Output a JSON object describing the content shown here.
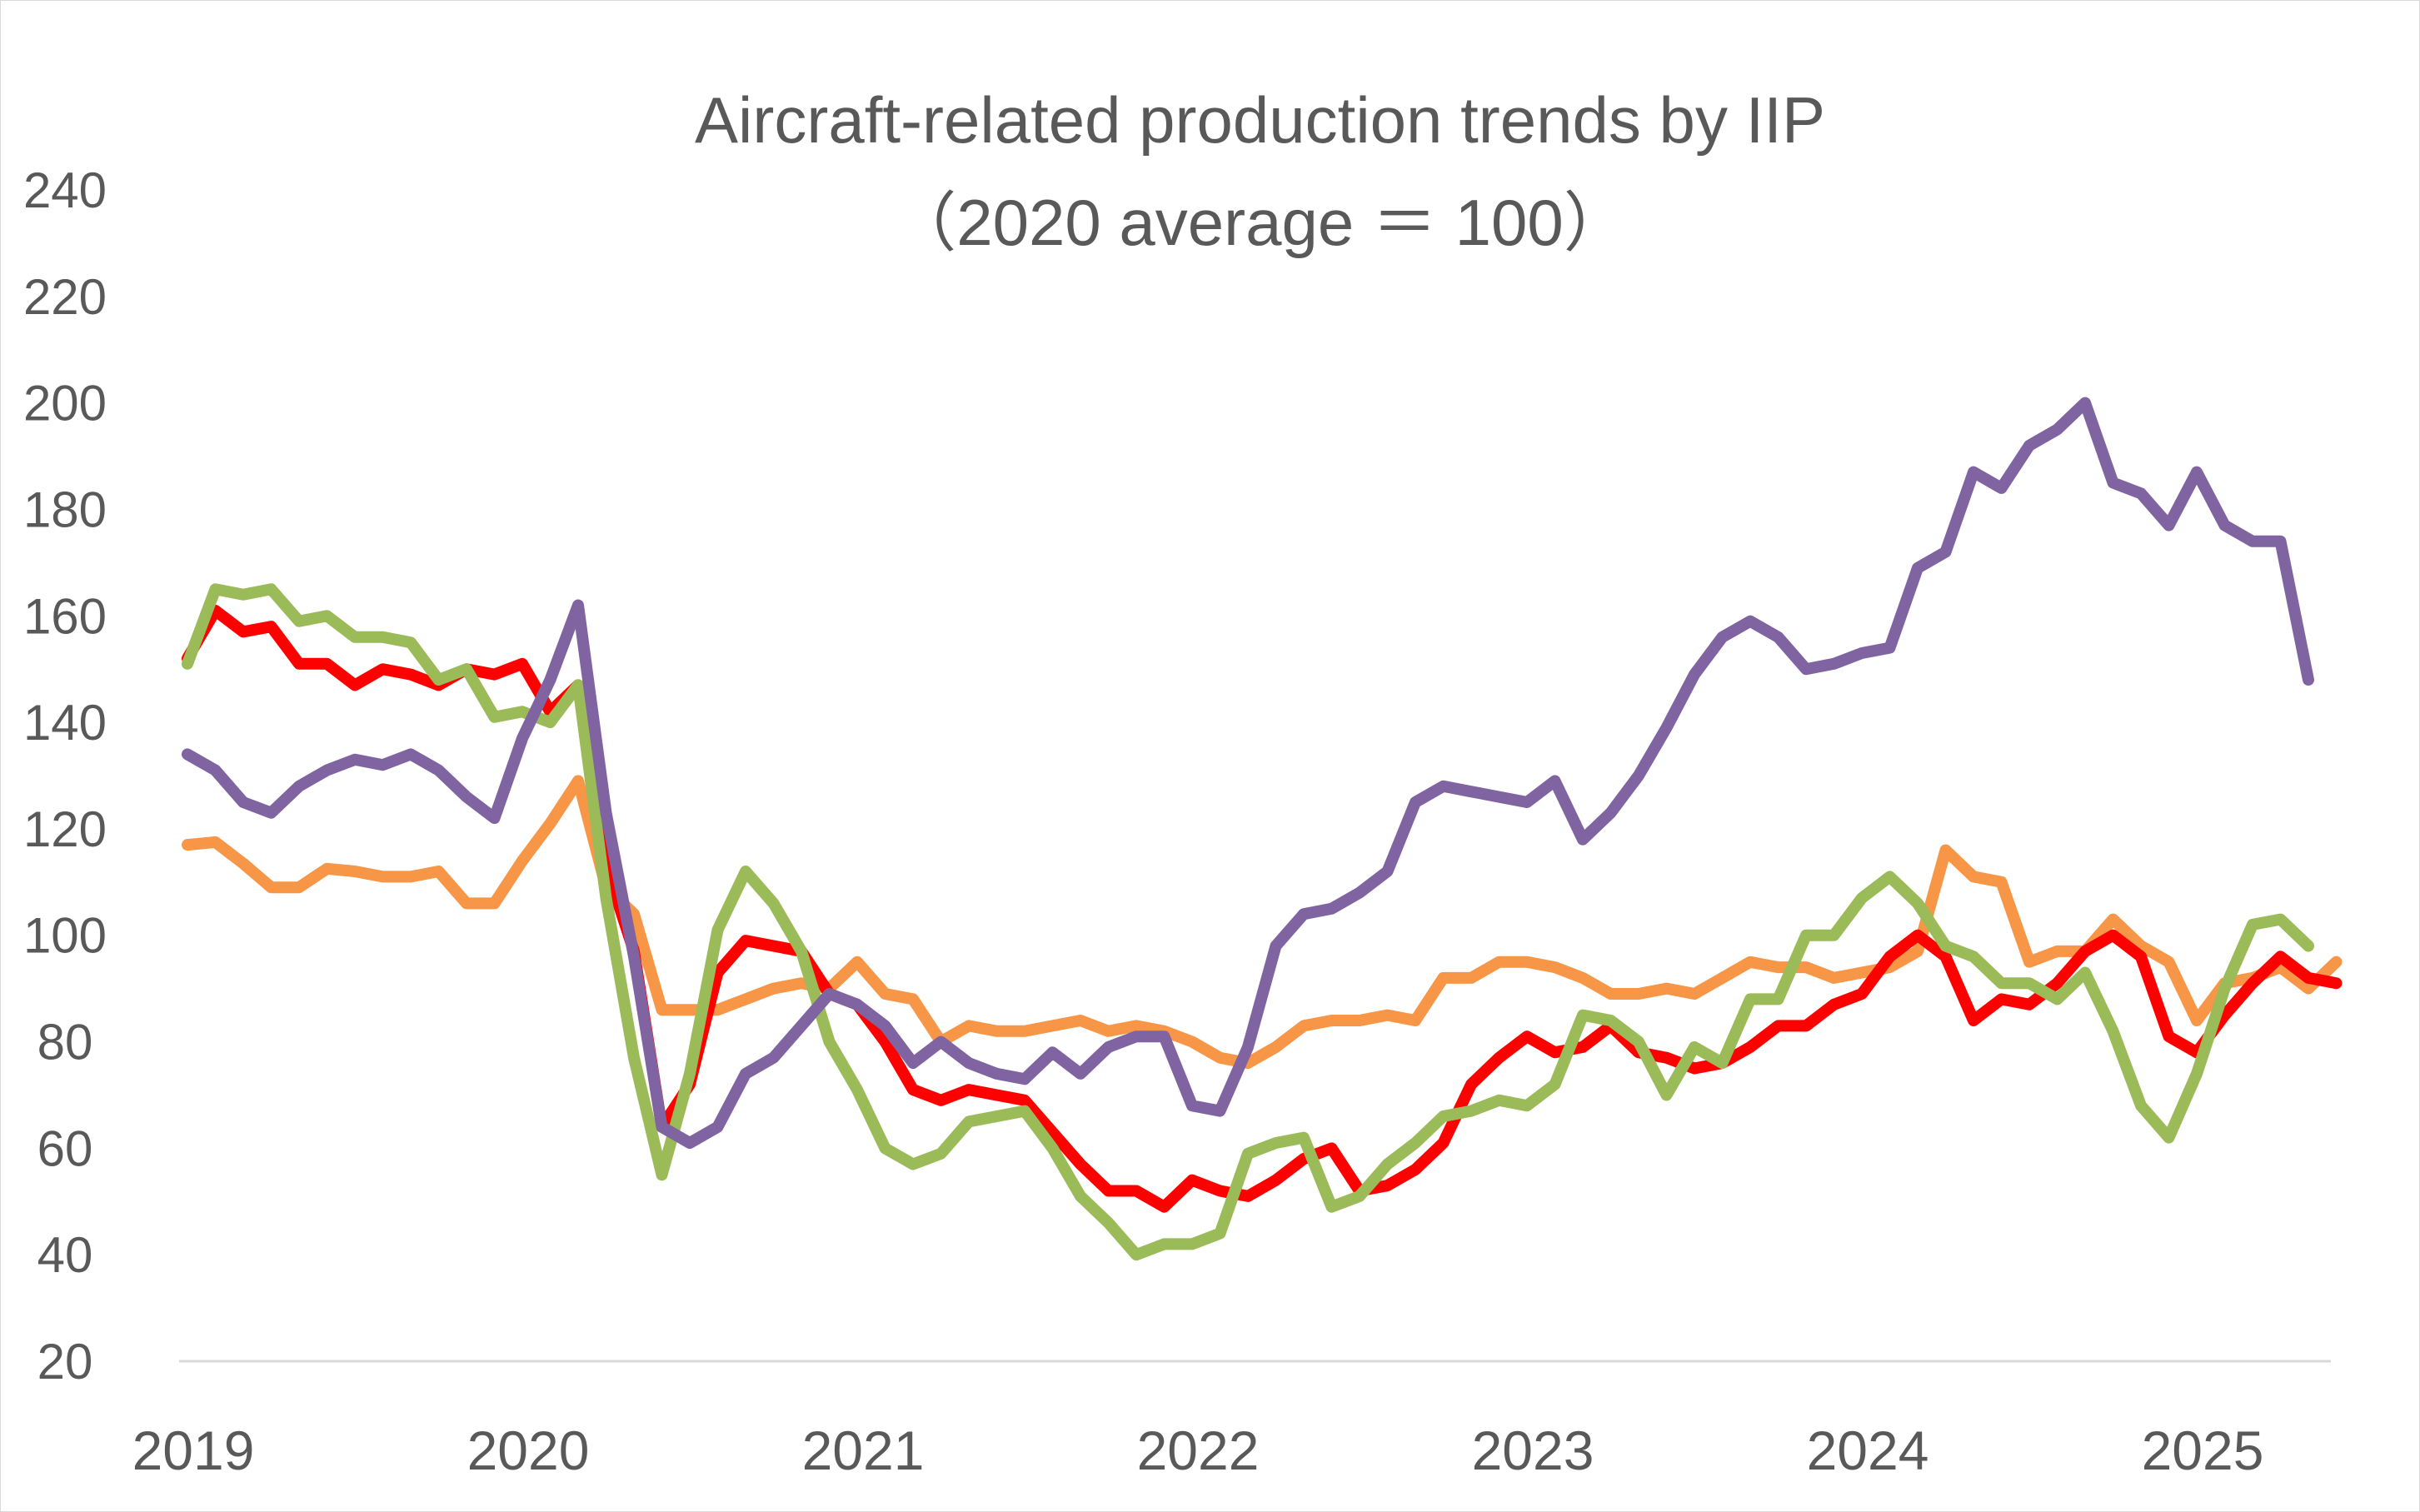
{
  "chart_data": {
    "type": "line",
    "title": "Aircraft-related production trends by IIP",
    "subtitle": "（2020 average ＝ 100）",
    "xlabel": "",
    "ylabel": "",
    "ylim": [
      20,
      240
    ],
    "yticks": [
      20,
      40,
      60,
      80,
      100,
      120,
      140,
      160,
      180,
      200,
      220,
      240
    ],
    "xticks": [
      "2019",
      "2020",
      "2021",
      "2022",
      "2023",
      "2024",
      "2025"
    ],
    "x_start": "2019-01",
    "x_frequency": "monthly",
    "grid": false,
    "legend": "none",
    "series": [
      {
        "name": "orange series",
        "color": "#F79646",
        "values": [
          117,
          117.5,
          113.5,
          109,
          109,
          112.5,
          112,
          111,
          111,
          112,
          106,
          106,
          114,
          121,
          129,
          109,
          104,
          86,
          86,
          86,
          88,
          90,
          91,
          90,
          95,
          89,
          88,
          80,
          83,
          82,
          82,
          83,
          84,
          82,
          83,
          82,
          80,
          77,
          76,
          79,
          83,
          84,
          84,
          85,
          84,
          92,
          92,
          95,
          95,
          94,
          92,
          89,
          89,
          90,
          89,
          92,
          95,
          94,
          94,
          92,
          93,
          94,
          97,
          116,
          111,
          110,
          95,
          97,
          97,
          103,
          98,
          95,
          84,
          91,
          92,
          94,
          90,
          95
        ],
        "stroke_width": 14
      },
      {
        "name": "red series",
        "color": "#FF0000",
        "values": [
          152,
          161,
          157,
          158,
          151,
          151,
          147,
          150,
          149,
          147,
          150,
          149,
          151,
          142,
          147,
          113,
          97,
          64,
          72,
          93,
          99,
          98,
          97,
          89,
          87,
          80,
          71,
          69,
          71,
          70,
          69,
          63,
          57,
          52,
          52,
          49,
          54,
          52,
          51,
          54,
          58,
          60,
          52,
          53,
          56,
          61,
          72,
          77,
          81,
          78,
          79,
          83,
          78,
          77,
          75,
          76,
          79,
          83,
          83,
          87,
          89,
          96,
          100,
          96,
          84,
          88,
          87,
          91,
          97,
          100,
          96,
          81,
          78,
          85,
          91,
          96,
          92,
          91
        ],
        "stroke_width": 14
      },
      {
        "name": "green series",
        "color": "#9BBB59",
        "values": [
          151,
          165,
          164,
          165,
          159,
          160,
          156,
          156,
          155,
          148,
          150,
          141,
          142,
          140,
          147,
          107,
          77,
          55,
          74,
          101,
          112,
          106,
          97,
          80,
          71,
          60,
          57,
          59,
          65,
          66,
          67,
          60,
          51,
          46,
          40,
          42,
          42,
          44,
          59,
          61,
          62,
          49,
          51,
          57,
          61,
          66,
          67,
          69,
          68,
          72,
          85,
          84,
          80,
          70,
          79,
          76,
          88,
          88,
          100,
          100,
          107,
          111,
          106,
          98,
          96,
          91,
          91,
          88,
          93,
          82,
          68,
          62,
          74,
          90,
          102,
          103,
          98
        ],
        "stroke_width": 14
      },
      {
        "name": "purple series",
        "color": "#8064A2",
        "values": [
          134,
          131,
          125,
          123,
          128,
          131,
          133,
          132,
          134,
          131,
          126,
          122,
          137,
          148,
          162,
          123,
          96,
          64,
          61,
          64,
          74,
          77,
          83,
          89,
          87,
          83,
          76,
          80,
          76,
          74,
          73,
          78,
          74,
          79,
          81,
          81,
          68,
          67,
          79,
          98,
          104,
          105,
          108,
          112,
          125,
          128,
          127,
          126,
          125,
          129,
          118,
          123,
          130,
          139,
          149,
          156,
          159,
          156,
          150,
          151,
          153,
          154,
          169,
          172,
          187,
          184,
          192,
          195,
          200,
          185,
          183,
          177,
          187,
          177,
          174,
          174,
          148
        ],
        "stroke_width": 14
      }
    ]
  }
}
